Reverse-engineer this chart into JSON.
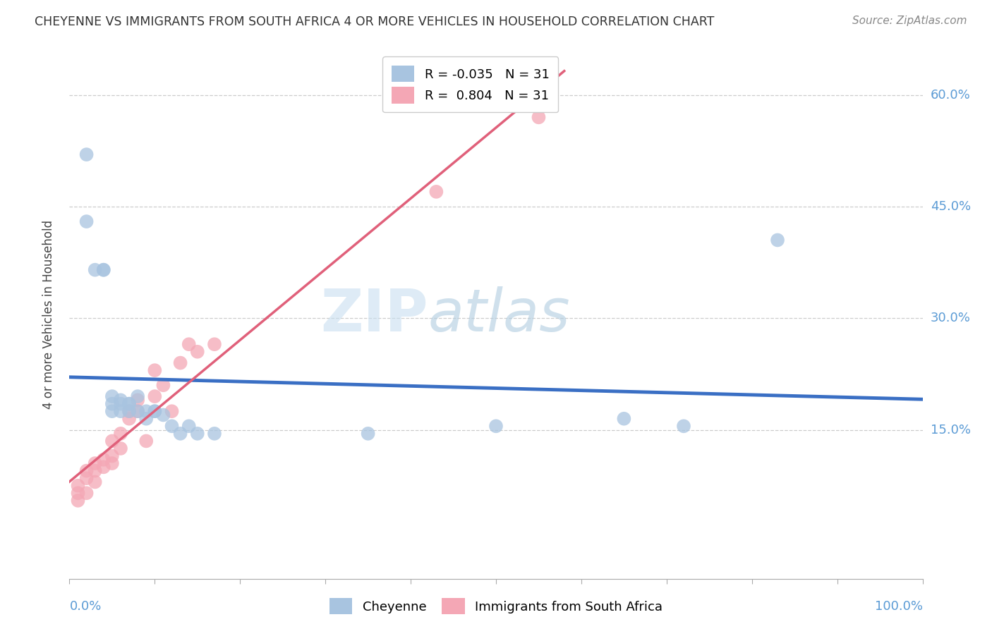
{
  "title": "CHEYENNE VS IMMIGRANTS FROM SOUTH AFRICA 4 OR MORE VEHICLES IN HOUSEHOLD CORRELATION CHART",
  "source_text": "Source: ZipAtlas.com",
  "ylabel": "4 or more Vehicles in Household",
  "y_tick_labels": [
    "60.0%",
    "45.0%",
    "30.0%",
    "15.0%"
  ],
  "y_tick_vals": [
    0.6,
    0.45,
    0.3,
    0.15
  ],
  "xlim": [
    0.0,
    1.0
  ],
  "ylim": [
    -0.05,
    0.66
  ],
  "legend_cheyenne": "Cheyenne",
  "legend_immigrants": "Immigrants from South Africa",
  "R_cheyenne": "-0.035",
  "N_cheyenne": "31",
  "R_immigrants": "0.804",
  "N_immigrants": "31",
  "color_cheyenne": "#a8c4e0",
  "color_immigrants": "#f4a7b5",
  "color_line_cheyenne": "#3a6fc4",
  "color_line_immigrants": "#e0607a",
  "background": "#ffffff",
  "cheyenne_x": [
    0.02,
    0.02,
    0.03,
    0.04,
    0.04,
    0.05,
    0.05,
    0.05,
    0.06,
    0.06,
    0.06,
    0.07,
    0.07,
    0.07,
    0.08,
    0.08,
    0.09,
    0.09,
    0.1,
    0.1,
    0.11,
    0.12,
    0.13,
    0.14,
    0.15,
    0.17,
    0.35,
    0.5,
    0.65,
    0.72,
    0.83
  ],
  "cheyenne_y": [
    0.52,
    0.43,
    0.365,
    0.365,
    0.365,
    0.195,
    0.185,
    0.175,
    0.19,
    0.185,
    0.175,
    0.185,
    0.185,
    0.175,
    0.195,
    0.175,
    0.165,
    0.175,
    0.175,
    0.175,
    0.17,
    0.155,
    0.145,
    0.155,
    0.145,
    0.145,
    0.145,
    0.155,
    0.165,
    0.155,
    0.405
  ],
  "immigrants_x": [
    0.01,
    0.01,
    0.01,
    0.02,
    0.02,
    0.02,
    0.03,
    0.03,
    0.03,
    0.04,
    0.04,
    0.05,
    0.05,
    0.05,
    0.06,
    0.06,
    0.07,
    0.07,
    0.08,
    0.08,
    0.09,
    0.1,
    0.1,
    0.11,
    0.12,
    0.13,
    0.14,
    0.15,
    0.17,
    0.43,
    0.55
  ],
  "immigrants_y": [
    0.055,
    0.065,
    0.075,
    0.065,
    0.085,
    0.095,
    0.08,
    0.095,
    0.105,
    0.1,
    0.11,
    0.105,
    0.115,
    0.135,
    0.125,
    0.145,
    0.165,
    0.175,
    0.175,
    0.19,
    0.135,
    0.195,
    0.23,
    0.21,
    0.175,
    0.24,
    0.265,
    0.255,
    0.265,
    0.47,
    0.57
  ],
  "watermark_zip": "ZIP",
  "watermark_atlas": "atlas"
}
